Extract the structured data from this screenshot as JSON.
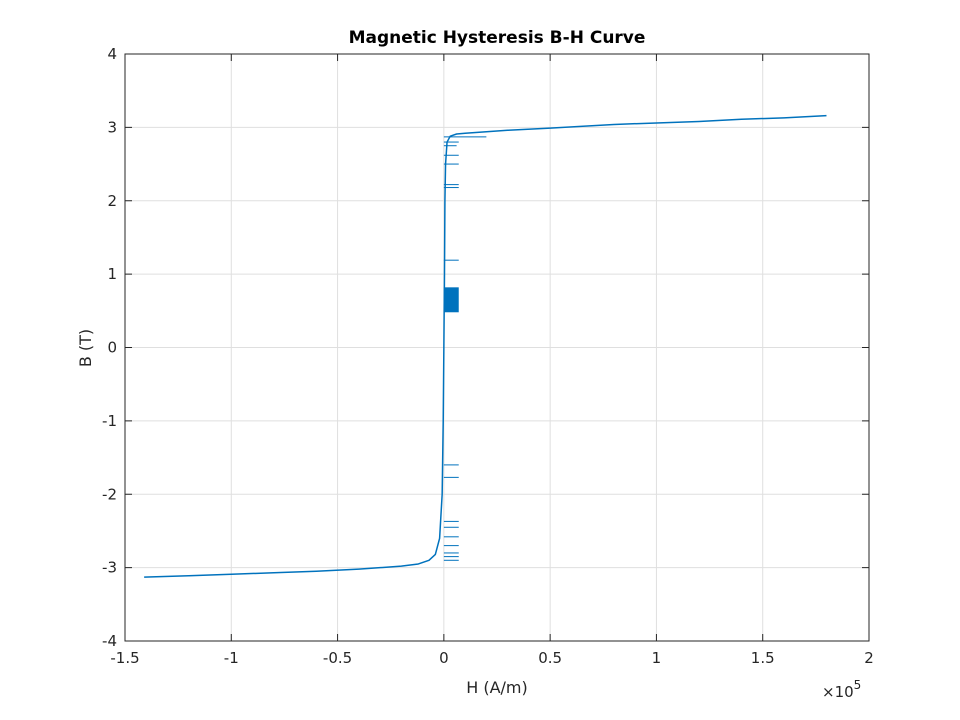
{
  "chart_data": {
    "type": "line",
    "title": "Magnetic Hysteresis B-H Curve",
    "xlabel": "H (A/m)",
    "ylabel": "B (T)",
    "x_exponent_label": "×10",
    "x_exponent_power": "5",
    "x_scale_factor": 100000,
    "xlim": [
      -1.5,
      2
    ],
    "ylim": [
      -4,
      4
    ],
    "xticks": [
      -1.5,
      -1,
      -0.5,
      0,
      0.5,
      1,
      1.5,
      2
    ],
    "xtick_labels": [
      "-1.5",
      "-1",
      "-0.5",
      "0",
      "0.5",
      "1",
      "1.5",
      "2"
    ],
    "yticks": [
      -4,
      -3,
      -2,
      -1,
      0,
      1,
      2,
      3,
      4
    ],
    "ytick_labels": [
      "-4",
      "-3",
      "-2",
      "-1",
      "0",
      "1",
      "2",
      "3",
      "4"
    ],
    "grid": true,
    "series": [
      {
        "color": "#0072BD",
        "x": [
          -1.41,
          -1.2,
          -1.0,
          -0.8,
          -0.6,
          -0.4,
          -0.3,
          -0.2,
          -0.12,
          -0.07,
          -0.04,
          -0.02,
          -0.008,
          -0.003,
          0.0,
          0.003,
          0.005,
          0.008,
          0.015,
          0.03,
          0.06,
          0.1,
          0.2,
          0.3,
          0.5,
          0.8,
          1.0,
          1.2,
          1.4,
          1.6,
          1.8
        ],
        "y": [
          -3.13,
          -3.11,
          -3.09,
          -3.07,
          -3.05,
          -3.02,
          -3.0,
          -2.98,
          -2.95,
          -2.9,
          -2.82,
          -2.6,
          -2.0,
          -1.0,
          0.0,
          1.0,
          2.0,
          2.5,
          2.8,
          2.88,
          2.91,
          2.92,
          2.94,
          2.96,
          2.99,
          3.04,
          3.06,
          3.08,
          3.11,
          3.13,
          3.16
        ]
      }
    ],
    "spikes": [
      {
        "y": 2.87,
        "x_end": 0.2
      },
      {
        "y": 2.8,
        "x_end": 0.07
      },
      {
        "y": 2.75,
        "x_end": 0.06
      },
      {
        "y": 2.62,
        "x_end": 0.07
      },
      {
        "y": 2.5,
        "x_end": 0.07
      },
      {
        "y": 2.22,
        "x_end": 0.07
      },
      {
        "y": 2.18,
        "x_end": 0.07
      },
      {
        "y": 1.19,
        "x_end": 0.07
      },
      {
        "y": -1.6,
        "x_end": 0.07
      },
      {
        "y": -1.77,
        "x_end": 0.07
      },
      {
        "y": -2.37,
        "x_end": 0.07
      },
      {
        "y": -2.45,
        "x_end": 0.07
      },
      {
        "y": -2.58,
        "x_end": 0.07
      },
      {
        "y": -2.7,
        "x_end": 0.07
      },
      {
        "y": -2.8,
        "x_end": 0.07
      },
      {
        "y": -2.85,
        "x_end": 0.07
      },
      {
        "y": -2.9,
        "x_end": 0.07
      }
    ],
    "dense_block": {
      "x_start": 0.0,
      "x_end": 0.07,
      "y_start": 0.48,
      "y_end": 0.82
    }
  }
}
